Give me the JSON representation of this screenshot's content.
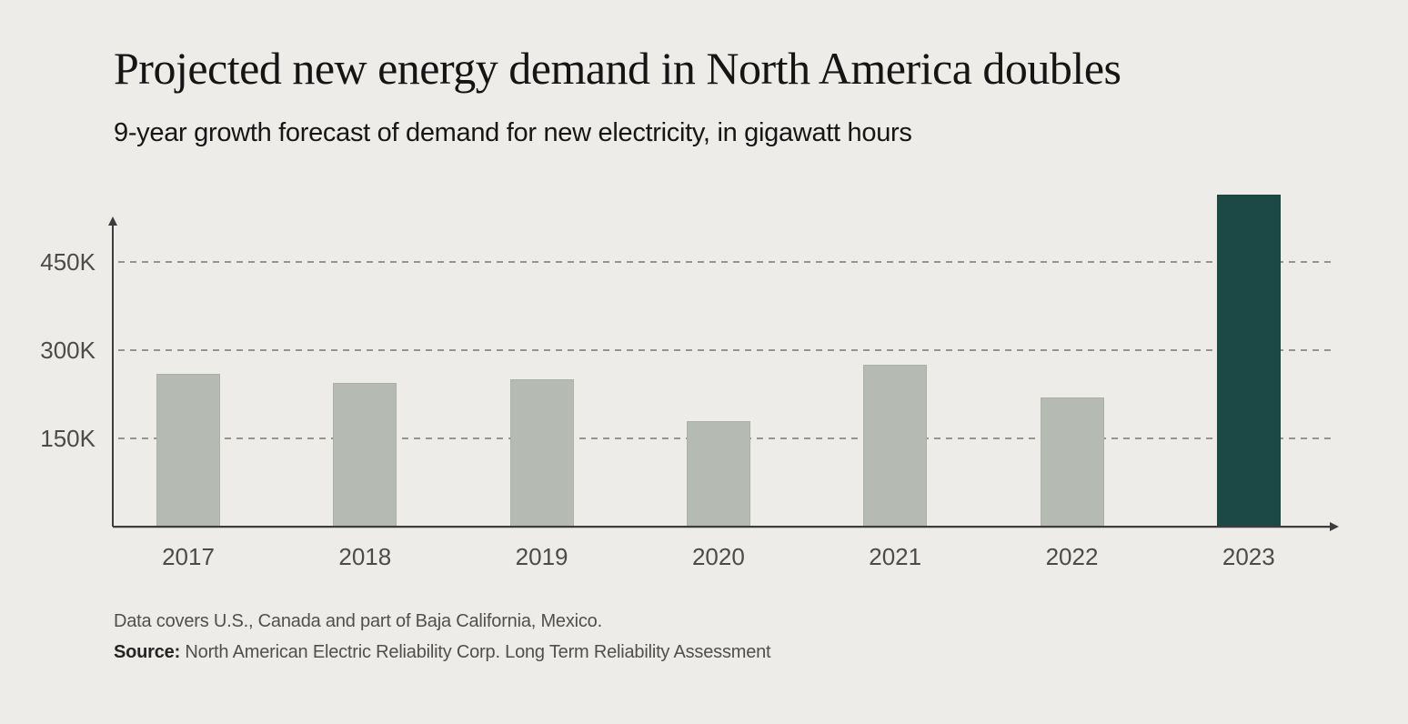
{
  "chart_data": {
    "type": "bar",
    "title": "Projected new energy demand in North America doubles",
    "subtitle": "9-year growth forecast of demand for new electricity, in gigawatt hours",
    "unit": "gigawatt hours",
    "categories": [
      "2017",
      "2018",
      "2019",
      "2020",
      "2021",
      "2022",
      "2023"
    ],
    "values": [
      260000,
      245000,
      250000,
      180000,
      275000,
      220000,
      565000
    ],
    "highlight_category": "2023",
    "yticks": [
      {
        "value": 150000,
        "label": "150K"
      },
      {
        "value": 300000,
        "label": "300K"
      },
      {
        "value": 450000,
        "label": "450K"
      }
    ],
    "ylim": [
      0,
      515000
    ],
    "grid": "dashed-horizontal",
    "legend": "none",
    "colors": {
      "background": "#edece9",
      "bar_default": "#b5bbb2",
      "bar_highlight": "#1c4845",
      "grid": "#95958f",
      "axis": "#3d3d3d",
      "tick_text": "#4b4b4b"
    }
  },
  "footer": {
    "note": "Data covers U.S., Canada and part of Baja California, Mexico.",
    "source_label": "Source:",
    "source_text": " North American Electric Reliability Corp. Long Term Reliability Assessment"
  }
}
